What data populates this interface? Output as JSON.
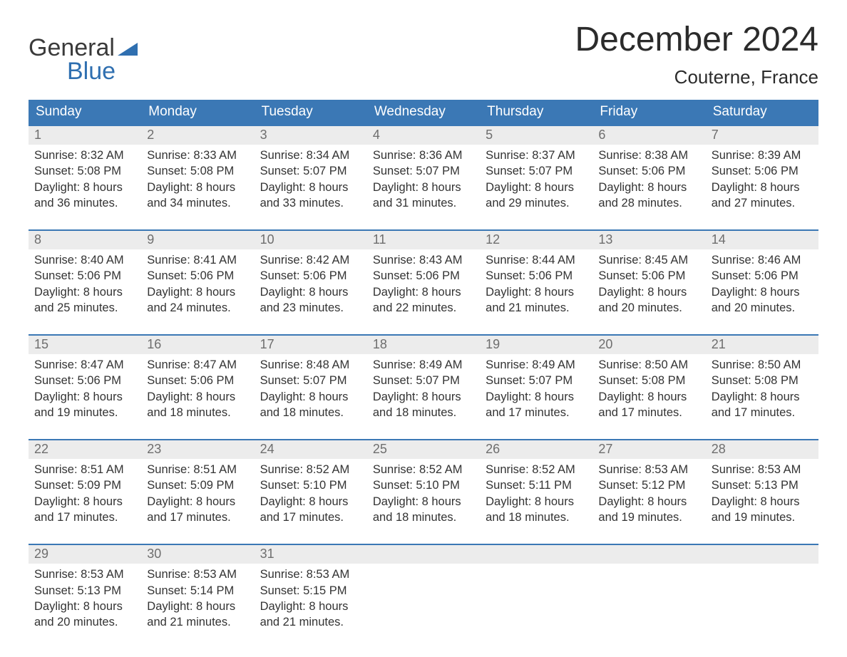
{
  "logo": {
    "line1": "General",
    "line2": "Blue",
    "triangle_color": "#2f6fb0"
  },
  "title": "December 2024",
  "location": "Couterne, France",
  "colors": {
    "header_bg": "#3b78b5",
    "header_text": "#ffffff",
    "daynum_bg": "#ececec",
    "daynum_text": "#6e6e6e",
    "body_text": "#333333",
    "week_border": "#3b78b5",
    "logo_gray": "#3a3a3a",
    "logo_blue": "#2f6fb0"
  },
  "day_labels": [
    "Sunday",
    "Monday",
    "Tuesday",
    "Wednesday",
    "Thursday",
    "Friday",
    "Saturday"
  ],
  "weeks": [
    [
      {
        "n": "1",
        "sunrise": "8:32 AM",
        "sunset": "5:08 PM",
        "dl": "8 hours and 36 minutes."
      },
      {
        "n": "2",
        "sunrise": "8:33 AM",
        "sunset": "5:08 PM",
        "dl": "8 hours and 34 minutes."
      },
      {
        "n": "3",
        "sunrise": "8:34 AM",
        "sunset": "5:07 PM",
        "dl": "8 hours and 33 minutes."
      },
      {
        "n": "4",
        "sunrise": "8:36 AM",
        "sunset": "5:07 PM",
        "dl": "8 hours and 31 minutes."
      },
      {
        "n": "5",
        "sunrise": "8:37 AM",
        "sunset": "5:07 PM",
        "dl": "8 hours and 29 minutes."
      },
      {
        "n": "6",
        "sunrise": "8:38 AM",
        "sunset": "5:06 PM",
        "dl": "8 hours and 28 minutes."
      },
      {
        "n": "7",
        "sunrise": "8:39 AM",
        "sunset": "5:06 PM",
        "dl": "8 hours and 27 minutes."
      }
    ],
    [
      {
        "n": "8",
        "sunrise": "8:40 AM",
        "sunset": "5:06 PM",
        "dl": "8 hours and 25 minutes."
      },
      {
        "n": "9",
        "sunrise": "8:41 AM",
        "sunset": "5:06 PM",
        "dl": "8 hours and 24 minutes."
      },
      {
        "n": "10",
        "sunrise": "8:42 AM",
        "sunset": "5:06 PM",
        "dl": "8 hours and 23 minutes."
      },
      {
        "n": "11",
        "sunrise": "8:43 AM",
        "sunset": "5:06 PM",
        "dl": "8 hours and 22 minutes."
      },
      {
        "n": "12",
        "sunrise": "8:44 AM",
        "sunset": "5:06 PM",
        "dl": "8 hours and 21 minutes."
      },
      {
        "n": "13",
        "sunrise": "8:45 AM",
        "sunset": "5:06 PM",
        "dl": "8 hours and 20 minutes."
      },
      {
        "n": "14",
        "sunrise": "8:46 AM",
        "sunset": "5:06 PM",
        "dl": "8 hours and 20 minutes."
      }
    ],
    [
      {
        "n": "15",
        "sunrise": "8:47 AM",
        "sunset": "5:06 PM",
        "dl": "8 hours and 19 minutes."
      },
      {
        "n": "16",
        "sunrise": "8:47 AM",
        "sunset": "5:06 PM",
        "dl": "8 hours and 18 minutes."
      },
      {
        "n": "17",
        "sunrise": "8:48 AM",
        "sunset": "5:07 PM",
        "dl": "8 hours and 18 minutes."
      },
      {
        "n": "18",
        "sunrise": "8:49 AM",
        "sunset": "5:07 PM",
        "dl": "8 hours and 18 minutes."
      },
      {
        "n": "19",
        "sunrise": "8:49 AM",
        "sunset": "5:07 PM",
        "dl": "8 hours and 17 minutes."
      },
      {
        "n": "20",
        "sunrise": "8:50 AM",
        "sunset": "5:08 PM",
        "dl": "8 hours and 17 minutes."
      },
      {
        "n": "21",
        "sunrise": "8:50 AM",
        "sunset": "5:08 PM",
        "dl": "8 hours and 17 minutes."
      }
    ],
    [
      {
        "n": "22",
        "sunrise": "8:51 AM",
        "sunset": "5:09 PM",
        "dl": "8 hours and 17 minutes."
      },
      {
        "n": "23",
        "sunrise": "8:51 AM",
        "sunset": "5:09 PM",
        "dl": "8 hours and 17 minutes."
      },
      {
        "n": "24",
        "sunrise": "8:52 AM",
        "sunset": "5:10 PM",
        "dl": "8 hours and 17 minutes."
      },
      {
        "n": "25",
        "sunrise": "8:52 AM",
        "sunset": "5:10 PM",
        "dl": "8 hours and 18 minutes."
      },
      {
        "n": "26",
        "sunrise": "8:52 AM",
        "sunset": "5:11 PM",
        "dl": "8 hours and 18 minutes."
      },
      {
        "n": "27",
        "sunrise": "8:53 AM",
        "sunset": "5:12 PM",
        "dl": "8 hours and 19 minutes."
      },
      {
        "n": "28",
        "sunrise": "8:53 AM",
        "sunset": "5:13 PM",
        "dl": "8 hours and 19 minutes."
      }
    ],
    [
      {
        "n": "29",
        "sunrise": "8:53 AM",
        "sunset": "5:13 PM",
        "dl": "8 hours and 20 minutes."
      },
      {
        "n": "30",
        "sunrise": "8:53 AM",
        "sunset": "5:14 PM",
        "dl": "8 hours and 21 minutes."
      },
      {
        "n": "31",
        "sunrise": "8:53 AM",
        "sunset": "5:15 PM",
        "dl": "8 hours and 21 minutes."
      },
      null,
      null,
      null,
      null
    ]
  ],
  "labels": {
    "sunrise": "Sunrise: ",
    "sunset": "Sunset: ",
    "daylight": "Daylight: "
  }
}
